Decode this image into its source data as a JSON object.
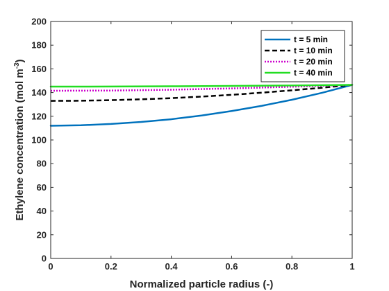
{
  "chart_data": {
    "type": "line",
    "xlabel": "Normalized particle radius (-)",
    "ylabel": {
      "main": "Ethylene concentration (mol m",
      "sup": "-3",
      "close": ")"
    },
    "xlim": [
      0,
      1
    ],
    "ylim": [
      0,
      200
    ],
    "xticks": [
      0,
      0.2,
      0.4,
      0.6,
      0.8,
      1
    ],
    "xtick_labels": [
      "0",
      "0.2",
      "0.4",
      "0.6",
      "0.8",
      "1"
    ],
    "yticks": [
      0,
      20,
      40,
      60,
      80,
      100,
      120,
      140,
      160,
      180,
      200
    ],
    "ytick_labels": [
      "0",
      "20",
      "40",
      "60",
      "80",
      "100",
      "120",
      "140",
      "160",
      "180",
      "200"
    ],
    "grid": false,
    "legend_position": "top-right",
    "series": [
      {
        "name": "t = 5 min",
        "color": "#0072BD",
        "style": "solid",
        "x": [
          0,
          0.1,
          0.2,
          0.3,
          0.4,
          0.5,
          0.6,
          0.7,
          0.8,
          0.9,
          1.0
        ],
        "y": [
          112,
          112.4,
          113.5,
          115.2,
          117.5,
          120.6,
          124.4,
          128.8,
          133.9,
          139.8,
          146.5
        ]
      },
      {
        "name": "t = 10 min",
        "color": "#000000",
        "style": "dashed",
        "x": [
          0,
          0.1,
          0.2,
          0.3,
          0.4,
          0.5,
          0.6,
          0.7,
          0.8,
          0.9,
          1.0
        ],
        "y": [
          133,
          133.1,
          133.6,
          134.3,
          135.3,
          136.6,
          138.1,
          139.9,
          141.9,
          144.1,
          146.5
        ]
      },
      {
        "name": "t = 20 min",
        "color": "#CC00CC",
        "style": "dotted",
        "x": [
          0,
          0.2,
          0.4,
          0.6,
          0.8,
          1.0
        ],
        "y": [
          141.5,
          141.7,
          142.4,
          143.5,
          144.9,
          146.5
        ]
      },
      {
        "name": "t = 40 min",
        "color": "#22DD22",
        "style": "solid",
        "x": [
          0,
          0.2,
          0.4,
          0.6,
          0.8,
          1.0
        ],
        "y": [
          145,
          145.1,
          145.3,
          145.6,
          146.0,
          146.5
        ]
      }
    ]
  }
}
